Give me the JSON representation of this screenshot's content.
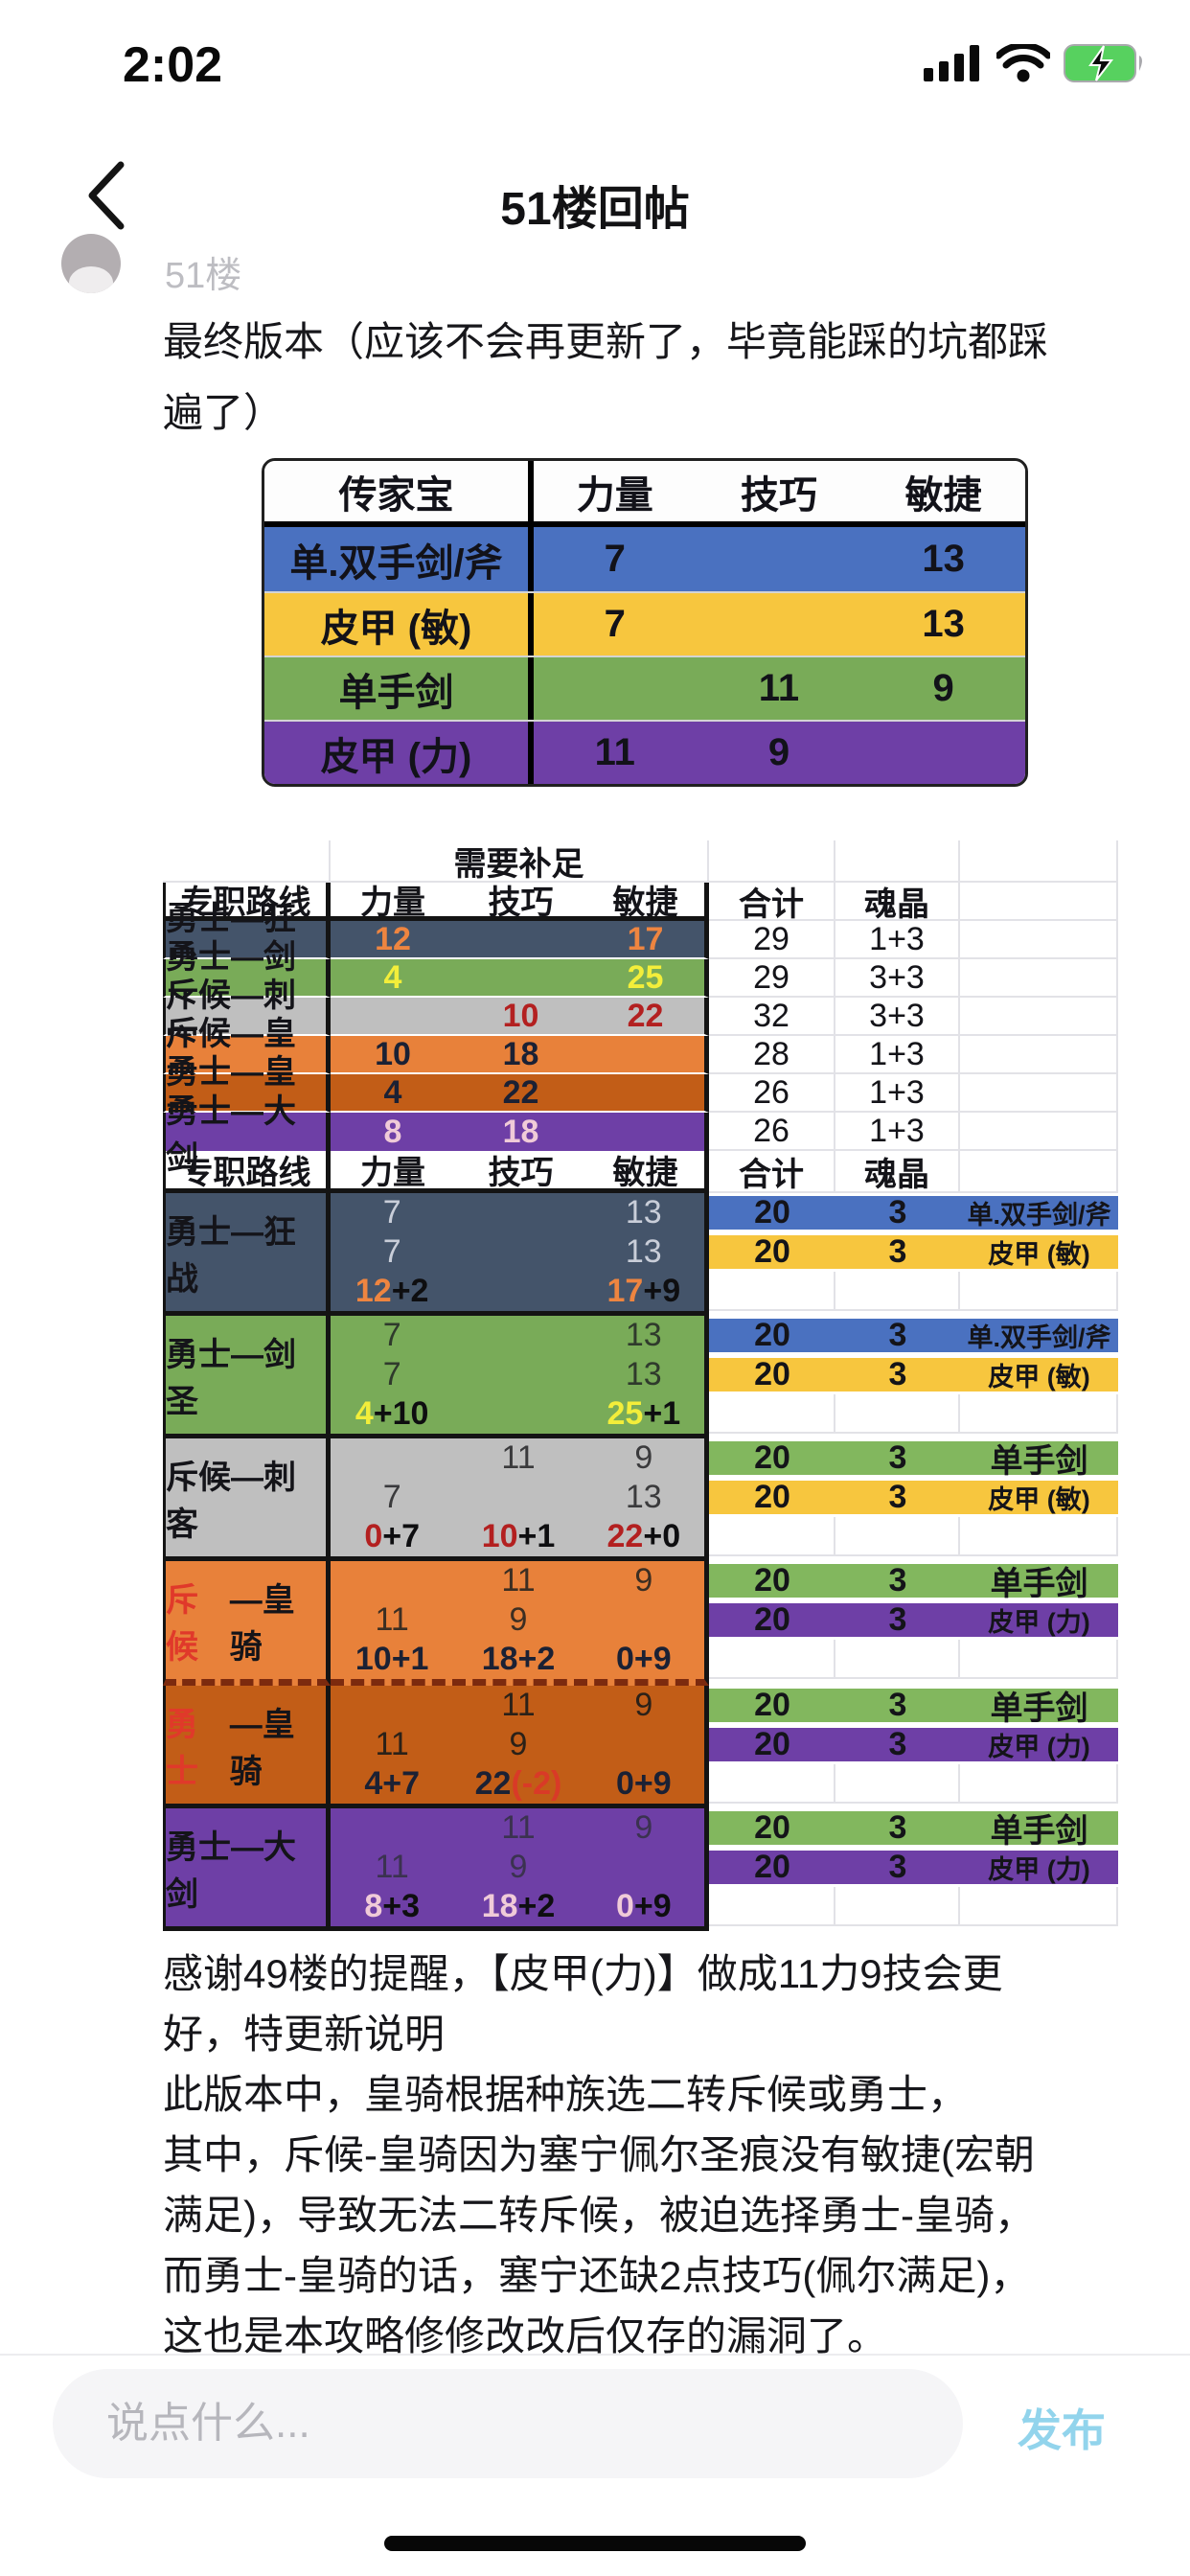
{
  "status_bar": {
    "time": "2:02"
  },
  "nav": {
    "title": "51楼回帖"
  },
  "post": {
    "floor": "51楼",
    "body1_lines": [
      "最终版本（应该不会再更新了，毕竟能踩的坑都踩",
      "遍了）"
    ],
    "body2_lines": [
      "感谢49楼的提醒，【皮甲(力)】做成11力9技会更",
      "好，特更新说明",
      "此版本中，皇骑根据种族选二转斥候或勇士，",
      "其中，斥候-皇骑因为塞宁佩尔圣痕没有敏捷(宏朝",
      "满足)，导致无法二转斥候，被迫选择勇士-皇骑，",
      "而勇士-皇骑的话，塞宁还缺2点技巧(佩尔满足)，",
      "这也是本攻略修修改改后仅存的漏洞了。"
    ]
  },
  "colors": {
    "blue": "#4a71c0",
    "yellow": "#f7c63e",
    "green": "#79ab58",
    "band_green": "#82b75e",
    "purple": "#6e3fa6",
    "slate": "#44546a",
    "gray": "#bfbfbf",
    "orange": "#e8813a",
    "dark_orange": "#c25d17",
    "red_label": "#e0392a",
    "num_orange": "#ee8540",
    "num_yellow": "#f3ee3a",
    "num_dark_red": "#b32020",
    "num_pink": "#f0cbd8",
    "accent_publish": "#92d4ec"
  },
  "table1": {
    "headers": [
      "传家宝",
      "力量",
      "技巧",
      "敏捷"
    ],
    "rows": [
      {
        "label": "单.双手剑/斧",
        "bg": "#4a71c0",
        "cells": [
          "7",
          "",
          "13"
        ]
      },
      {
        "label": "皮甲 (敏)",
        "bg": "#f7c63e",
        "cells": [
          "7",
          "",
          "13"
        ]
      },
      {
        "label": "单手剑",
        "bg": "#79ab58",
        "cells": [
          "",
          "11",
          "9"
        ]
      },
      {
        "label": "皮甲 (力)",
        "bg": "#6e3fa6",
        "cells": [
          "11",
          "9",
          ""
        ]
      }
    ]
  },
  "table2": {
    "merged_header": "需要补足",
    "headers": [
      "专职路线",
      "力量",
      "技巧",
      "敏捷",
      "合计",
      "魂晶"
    ],
    "summary_rows": [
      {
        "label": "勇士—狂战",
        "bg": "#44546a",
        "cells": [
          [
            [
              "12",
              "#ee8540"
            ]
          ],
          [],
          [
            [
              "17",
              "#ee8540"
            ]
          ]
        ],
        "total": "29",
        "soul": "1+3"
      },
      {
        "label": "勇士—剑圣",
        "bg": "#79ab58",
        "cells": [
          [
            [
              "4",
              "#f3ee3a"
            ]
          ],
          [],
          [
            [
              "25",
              "#f3ee3a"
            ]
          ]
        ],
        "total": "29",
        "soul": "3+3"
      },
      {
        "label": "斥候—刺客",
        "bg": "#bfbfbf",
        "cells": [
          [],
          [
            [
              "10",
              "#b32020"
            ]
          ],
          [
            [
              "22",
              "#b32020"
            ]
          ]
        ],
        "total": "32",
        "soul": "3+3"
      },
      {
        "label": "斥候—皇骑",
        "bg": "#e8813a",
        "cells": [
          [
            [
              "10",
              "#1b2134"
            ]
          ],
          [
            [
              "18",
              "#1b2134"
            ]
          ],
          []
        ],
        "total": "28",
        "soul": "1+3"
      },
      {
        "label": "勇士—皇骑",
        "bg": "#c25d17",
        "cells": [
          [
            [
              "4",
              "#1b2134"
            ]
          ],
          [
            [
              "22",
              "#1b2134"
            ]
          ],
          []
        ],
        "total": "26",
        "soul": "1+3"
      },
      {
        "label": "勇士—大剑",
        "bg": "#6e3fa6",
        "cells": [
          [
            [
              "8",
              "#f0cbd8"
            ]
          ],
          [
            [
              "18",
              "#f0cbd8"
            ]
          ],
          []
        ],
        "total": "26",
        "soul": "1+3"
      }
    ],
    "blocks": [
      {
        "label": "勇士—狂战",
        "bg": "#44546a",
        "sub_color": "#c9ced9",
        "rows": [
          [
            [
              [
                "7"
              ]
            ],
            [],
            [
              [
                "13"
              ]
            ]
          ],
          [
            [
              [
                "7"
              ]
            ],
            [],
            [
              [
                "13"
              ]
            ]
          ],
          [
            [
              [
                "12",
                "#ee8540"
              ],
              [
                "+2",
                "#0e0e10"
              ]
            ],
            [],
            [
              [
                "17",
                "#ee8540"
              ],
              [
                "+9",
                "#0e0e10"
              ]
            ]
          ]
        ],
        "bands": [
          {
            "bg": "#4a71c0",
            "total": "20",
            "soul": "3",
            "name": "单.双手剑/斧"
          },
          {
            "bg": "#f7c63e",
            "total": "20",
            "soul": "3",
            "name": "皮甲 (敏)"
          }
        ]
      },
      {
        "label": "勇士—剑圣",
        "bg": "#79ab58",
        "sub_color": "#2f3a2c",
        "rows": [
          [
            [
              [
                "7"
              ]
            ],
            [],
            [
              [
                "13"
              ]
            ]
          ],
          [
            [
              [
                "7"
              ]
            ],
            [],
            [
              [
                "13"
              ]
            ]
          ],
          [
            [
              [
                "4",
                "#f3ee3a"
              ],
              [
                "+10",
                "#0e0e10"
              ]
            ],
            [],
            [
              [
                "25",
                "#f3ee3a"
              ],
              [
                "+1",
                "#0e0e10"
              ]
            ]
          ]
        ],
        "bands": [
          {
            "bg": "#4a71c0",
            "total": "20",
            "soul": "3",
            "name": "单.双手剑/斧"
          },
          {
            "bg": "#f7c63e",
            "total": "20",
            "soul": "3",
            "name": "皮甲 (敏)"
          }
        ]
      },
      {
        "label": "斥候—刺客",
        "bg": "#bfbfbf",
        "sub_color": "#3a3a3c",
        "rows": [
          [
            [],
            [
              [
                "11"
              ]
            ],
            [
              [
                "9"
              ]
            ]
          ],
          [
            [
              [
                "7"
              ]
            ],
            [],
            [
              [
                "13"
              ]
            ]
          ],
          [
            [
              [
                "0",
                "#b32020"
              ],
              [
                "+7",
                "#0e0e10"
              ]
            ],
            [
              [
                "10",
                "#b32020"
              ],
              [
                "+1",
                "#0e0e10"
              ]
            ],
            [
              [
                "22",
                "#b32020"
              ],
              [
                "+0",
                "#0e0e10"
              ]
            ]
          ]
        ],
        "bands": [
          {
            "bg": "#82b75e",
            "total": "20",
            "soul": "3",
            "name": "单手剑"
          },
          {
            "bg": "#f7c63e",
            "total": "20",
            "soul": "3",
            "name": "皮甲 (敏)"
          }
        ]
      },
      {
        "label_red": "斥候",
        "label": "—皇骑",
        "bg": "#e8813a",
        "sub_color": "#3c2e22",
        "dash_bottom": true,
        "rows": [
          [
            [],
            [
              [
                "11"
              ]
            ],
            [
              [
                "9"
              ]
            ]
          ],
          [
            [
              [
                "11"
              ]
            ],
            [
              [
                "9"
              ]
            ],
            []
          ],
          [
            [
              [
                "10+1",
                "#1b2134"
              ]
            ],
            [
              [
                "18+2",
                "#1b2134"
              ]
            ],
            [
              [
                "0+9",
                "#1b2134"
              ]
            ]
          ]
        ],
        "bands": [
          {
            "bg": "#82b75e",
            "total": "20",
            "soul": "3",
            "name": "单手剑"
          },
          {
            "bg": "#6e3fa6",
            "total": "20",
            "soul": "3",
            "name": "皮甲 (力)"
          }
        ]
      },
      {
        "label_red": "勇士",
        "label": "—皇骑",
        "bg": "#c25d17",
        "sub_color": "#2b2118",
        "rows": [
          [
            [],
            [
              [
                "11"
              ]
            ],
            [
              [
                "9"
              ]
            ]
          ],
          [
            [
              [
                "11"
              ]
            ],
            [
              [
                "9"
              ]
            ],
            []
          ],
          [
            [
              [
                "4+7",
                "#1b2134"
              ]
            ],
            [
              [
                "22",
                "#1b2134"
              ],
              [
                "(-2)",
                "#d93a27"
              ]
            ],
            [
              [
                "0+9",
                "#1b2134"
              ]
            ]
          ]
        ],
        "bands": [
          {
            "bg": "#82b75e",
            "total": "20",
            "soul": "3",
            "name": "单手剑"
          },
          {
            "bg": "#6e3fa6",
            "total": "20",
            "soul": "3",
            "name": "皮甲 (力)"
          }
        ]
      },
      {
        "label": "勇士—大剑",
        "bg": "#6e3fa6",
        "sub_color": "#3b3250",
        "rows": [
          [
            [],
            [
              [
                "11"
              ]
            ],
            [
              [
                "9"
              ]
            ]
          ],
          [
            [
              [
                "11"
              ]
            ],
            [
              [
                "9"
              ]
            ],
            []
          ],
          [
            [
              [
                "8",
                "#f0cbd8"
              ],
              [
                "+3",
                "#0e0e10"
              ]
            ],
            [
              [
                "18",
                "#f0cbd8"
              ],
              [
                "+2",
                "#0e0e10"
              ]
            ],
            [
              [
                "0",
                "#f0cbd8"
              ],
              [
                "+9",
                "#0e0e10"
              ]
            ]
          ]
        ],
        "bands": [
          {
            "bg": "#82b75e",
            "total": "20",
            "soul": "3",
            "name": "单手剑"
          },
          {
            "bg": "#6e3fa6",
            "total": "20",
            "soul": "3",
            "name": "皮甲 (力)"
          }
        ]
      }
    ]
  },
  "composer": {
    "placeholder": "说点什么...",
    "publish_label": "发布"
  }
}
